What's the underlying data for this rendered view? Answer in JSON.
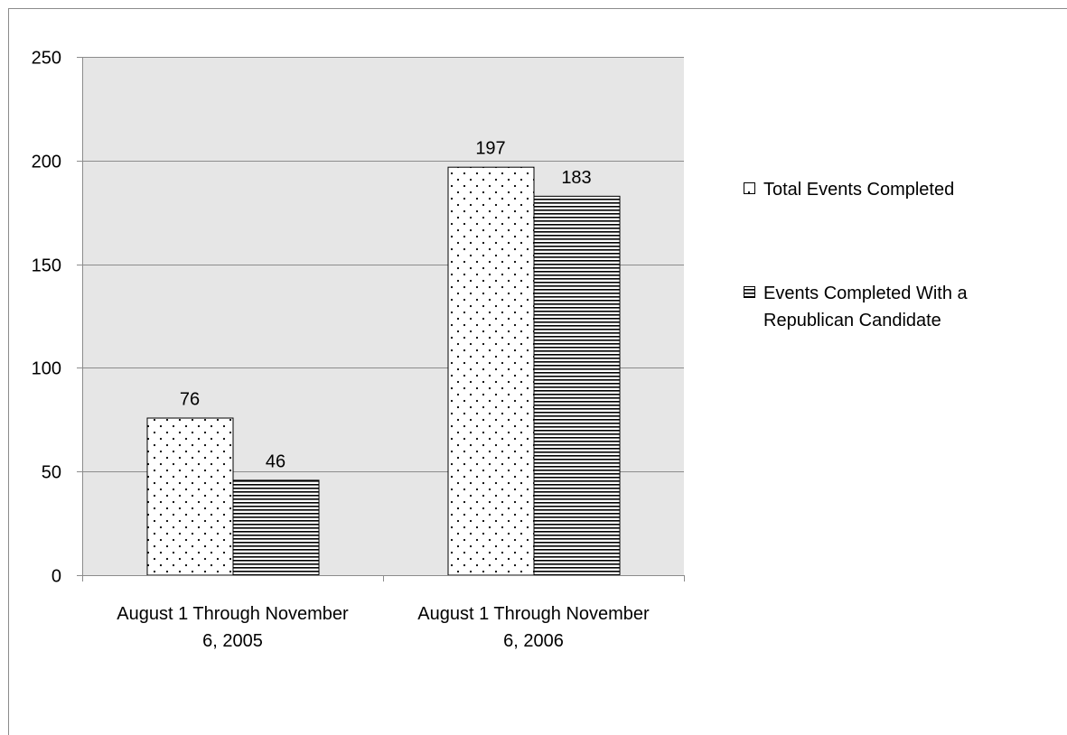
{
  "chart_data": {
    "type": "bar",
    "title": "",
    "xlabel": "",
    "ylabel": "",
    "categories": [
      "August 1 Through November 6, 2005",
      "August 1 Through November 6, 2006"
    ],
    "category_lines": [
      [
        "August 1 Through November",
        "6, 2005"
      ],
      [
        "August 1 Through November",
        "6, 2006"
      ]
    ],
    "series": [
      {
        "name": "Total Events Completed",
        "values": [
          76,
          197
        ],
        "pattern": "dots",
        "name_lines": [
          "Total Events Completed"
        ]
      },
      {
        "name": "Events Completed With a Republican Candidate",
        "values": [
          46,
          183
        ],
        "pattern": "horizontal-stripes",
        "name_lines": [
          "Events Completed With a",
          "Republican Candidate"
        ]
      }
    ],
    "ylim": [
      0,
      250
    ],
    "yticks": [
      0,
      50,
      100,
      150,
      200,
      250
    ],
    "grid": true,
    "data_labels": true,
    "legend_position": "right",
    "colors": {
      "plot_background": "#e6e6e6",
      "gridline": "#8c8c8c",
      "bar_fill": "#ffffff",
      "pattern_ink": "#000000",
      "frame": "#8c8c8c"
    }
  }
}
